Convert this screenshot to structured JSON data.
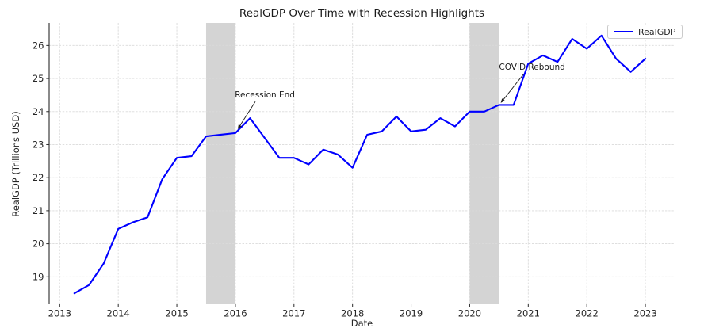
{
  "chart_data": {
    "type": "line",
    "title": "RealGDP Over Time with Recession Highlights",
    "xlabel": "Date",
    "ylabel": "RealGDP (Trillions USD)",
    "grid": true,
    "x_ticks": [
      2013,
      2014,
      2015,
      2016,
      2017,
      2018,
      2019,
      2020,
      2021,
      2022,
      2023
    ],
    "y_ticks": [
      19,
      20,
      21,
      22,
      23,
      24,
      25,
      26
    ],
    "xlim": [
      2012.82,
      2023.5
    ],
    "ylim": [
      18.18,
      26.68
    ],
    "legend": {
      "position": "upper right",
      "entries": [
        {
          "label": "RealGDP",
          "color": "#0000ff"
        }
      ]
    },
    "series": [
      {
        "name": "RealGDP",
        "color": "#0000ff",
        "points": [
          {
            "quarter": "2013-Q1",
            "x": 2013.25,
            "y": 18.5
          },
          {
            "quarter": "2013-Q2",
            "x": 2013.5,
            "y": 18.75
          },
          {
            "quarter": "2013-Q3",
            "x": 2013.75,
            "y": 19.4
          },
          {
            "quarter": "2013-Q4",
            "x": 2014.0,
            "y": 20.45
          },
          {
            "quarter": "2014-Q1",
            "x": 2014.25,
            "y": 20.65
          },
          {
            "quarter": "2014-Q2",
            "x": 2014.5,
            "y": 20.8
          },
          {
            "quarter": "2014-Q3",
            "x": 2014.75,
            "y": 21.95
          },
          {
            "quarter": "2014-Q4",
            "x": 2015.0,
            "y": 22.6
          },
          {
            "quarter": "2015-Q1",
            "x": 2015.25,
            "y": 22.65
          },
          {
            "quarter": "2015-Q2",
            "x": 2015.5,
            "y": 23.25
          },
          {
            "quarter": "2015-Q3",
            "x": 2015.75,
            "y": 23.3
          },
          {
            "quarter": "2015-Q4",
            "x": 2016.0,
            "y": 23.35
          },
          {
            "quarter": "2016-Q1",
            "x": 2016.25,
            "y": 23.8
          },
          {
            "quarter": "2016-Q2",
            "x": 2016.5,
            "y": 23.2
          },
          {
            "quarter": "2016-Q3",
            "x": 2016.75,
            "y": 22.6
          },
          {
            "quarter": "2016-Q4",
            "x": 2017.0,
            "y": 22.6
          },
          {
            "quarter": "2017-Q1",
            "x": 2017.25,
            "y": 22.4
          },
          {
            "quarter": "2017-Q2",
            "x": 2017.5,
            "y": 22.85
          },
          {
            "quarter": "2017-Q3",
            "x": 2017.75,
            "y": 22.7
          },
          {
            "quarter": "2017-Q4",
            "x": 2018.0,
            "y": 22.3
          },
          {
            "quarter": "2018-Q1",
            "x": 2018.25,
            "y": 23.3
          },
          {
            "quarter": "2018-Q2",
            "x": 2018.5,
            "y": 23.4
          },
          {
            "quarter": "2018-Q3",
            "x": 2018.75,
            "y": 23.85
          },
          {
            "quarter": "2018-Q4",
            "x": 2019.0,
            "y": 23.4
          },
          {
            "quarter": "2019-Q1",
            "x": 2019.25,
            "y": 23.45
          },
          {
            "quarter": "2019-Q2",
            "x": 2019.5,
            "y": 23.8
          },
          {
            "quarter": "2019-Q3",
            "x": 2019.75,
            "y": 23.55
          },
          {
            "quarter": "2019-Q4",
            "x": 2020.0,
            "y": 24.0
          },
          {
            "quarter": "2020-Q1",
            "x": 2020.25,
            "y": 24.0
          },
          {
            "quarter": "2020-Q2",
            "x": 2020.5,
            "y": 24.2
          },
          {
            "quarter": "2020-Q3",
            "x": 2020.75,
            "y": 24.2
          },
          {
            "quarter": "2020-Q4",
            "x": 2021.0,
            "y": 25.45
          },
          {
            "quarter": "2021-Q1",
            "x": 2021.25,
            "y": 25.7
          },
          {
            "quarter": "2021-Q2",
            "x": 2021.5,
            "y": 25.5
          },
          {
            "quarter": "2021-Q3",
            "x": 2021.75,
            "y": 26.2
          },
          {
            "quarter": "2021-Q4",
            "x": 2022.0,
            "y": 25.9
          },
          {
            "quarter": "2022-Q1",
            "x": 2022.25,
            "y": 26.3
          },
          {
            "quarter": "2022-Q2",
            "x": 2022.5,
            "y": 25.6
          },
          {
            "quarter": "2022-Q3",
            "x": 2022.75,
            "y": 25.2
          },
          {
            "quarter": "2022-Q4",
            "x": 2023.0,
            "y": 25.6
          }
        ]
      }
    ],
    "recession_bands": [
      {
        "x_start": 2015.5,
        "x_end": 2016.0
      },
      {
        "x_start": 2020.0,
        "x_end": 2020.5
      }
    ],
    "annotations": [
      {
        "label": "Recession End",
        "xy": [
          2016.04,
          23.47
        ],
        "xytext": [
          2015.99,
          24.42
        ],
        "arrow_start": [
          2016.34,
          24.3
        ]
      },
      {
        "label": "COVID Rebound",
        "xy": [
          2020.53,
          24.26
        ],
        "xytext": [
          2020.5,
          25.26
        ],
        "arrow_start": [
          2020.92,
          25.13
        ]
      }
    ],
    "colors": {
      "line": "#0000ff",
      "recession_band": "#d4d4d4",
      "gridline": "#dadada",
      "spine": "#2a2a2a",
      "text": "#262626",
      "annotation_arrow": "#1a1a1a",
      "legend_border": "#cbcbcb",
      "background": "#ffffff"
    }
  }
}
